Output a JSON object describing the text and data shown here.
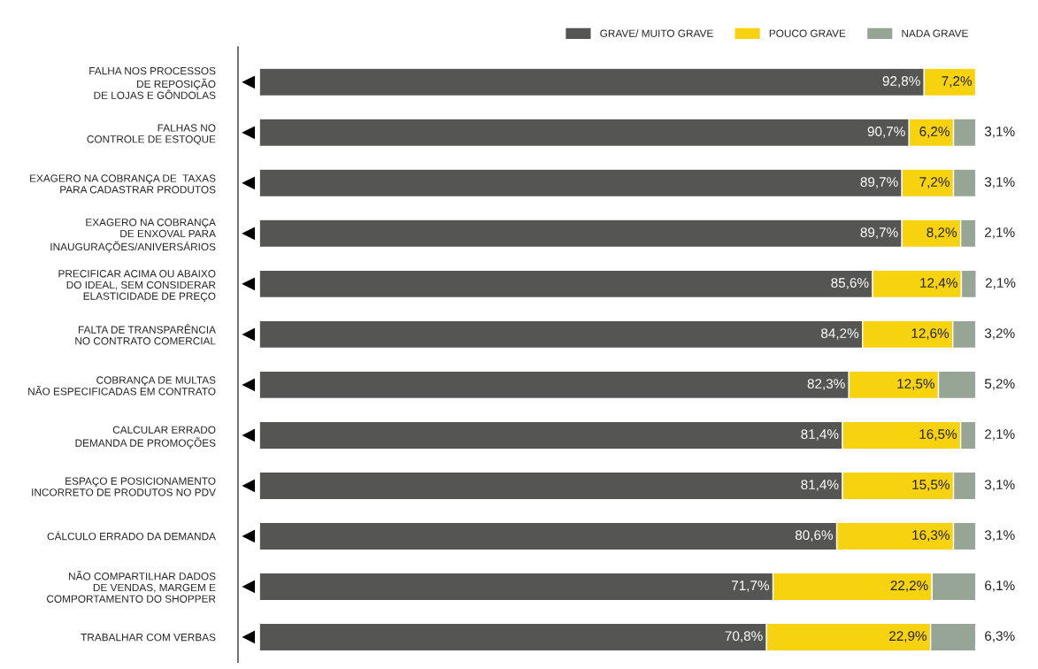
{
  "chart_data": {
    "type": "bar",
    "orientation": "horizontal",
    "stacked": true,
    "xlim": [
      0,
      100
    ],
    "tick_labels": "y",
    "legend": "top right",
    "categories": [
      "FALHA NOS PROCESSOS\nDE REPOSIÇÃO\nDE LOJAS E GÔNDOLAS",
      "FALHAS NO\nCONTROLE DE ESTOQUE",
      "EXAGERO NA COBRANÇA DE  TAXAS\nPARA CADASTRAR PRODUTOS",
      "EXAGERO NA COBRANÇA\nDE ENXOVAL PARA\nINAUGURAÇÕES/ANIVERSÁRIOS",
      "PRECIFICAR ACIMA OU ABAIXO\nDO IDEAL, SEM CONSIDERAR\nELASTICIDADE DE PREÇO",
      "FALTA DE TRANSPARÊNCIA\nNO CONTRATO COMERCIAL",
      "COBRANÇA DE MULTAS\nNÃO ESPECIFICADAS EM CONTRATO",
      "CALCULAR ERRADO\nDEMANDA DE PROMOÇÕES",
      "ESPAÇO E POSICIONAMENTO\nINCORRETO DE PRODUTOS NO PDV",
      "CÁLCULO ERRADO DA DEMANDA",
      "NÃO COMPARTILHAR DADOS\nDE VENDAS, MARGEM E\nCOMPORTAMENTO DO SHOPPER",
      "TRABALHAR COM VERBAS"
    ],
    "series": [
      {
        "name": "GRAVE/ MUITO GRAVE",
        "color": "#555553",
        "values": [
          92.8,
          90.7,
          89.7,
          89.7,
          85.6,
          84.2,
          82.3,
          81.4,
          81.4,
          80.6,
          71.7,
          70.8
        ],
        "value_labels": [
          "92,8%",
          "90,7%",
          "89,7%",
          "89,7%",
          "85,6%",
          "84,2%",
          "82,3%",
          "81,4%",
          "81,4%",
          "80,6%",
          "71,7%",
          "70,8%"
        ]
      },
      {
        "name": "POUCO GRAVE",
        "color": "#f7d20f",
        "values": [
          7.2,
          6.2,
          7.2,
          8.2,
          12.4,
          12.6,
          12.5,
          16.5,
          15.5,
          16.3,
          22.2,
          22.9
        ],
        "value_labels": [
          "7,2%",
          "6,2%",
          "7,2%",
          "8,2%",
          "12,4%",
          "12,6%",
          "12,5%",
          "16,5%",
          "15,5%",
          "16,3%",
          "22,2%",
          "22,9%"
        ]
      },
      {
        "name": "NADA GRAVE",
        "color": "#96a596",
        "values": [
          null,
          3.1,
          3.1,
          2.1,
          2.1,
          3.2,
          5.2,
          2.1,
          3.1,
          3.1,
          6.1,
          6.3
        ],
        "value_labels": [
          null,
          "3,1%",
          "3,1%",
          "2,1%",
          "2,1%",
          "3,2%",
          "5,2%",
          "2,1%",
          "3,1%",
          "3,1%",
          "6,1%",
          "6,3%"
        ]
      }
    ]
  }
}
